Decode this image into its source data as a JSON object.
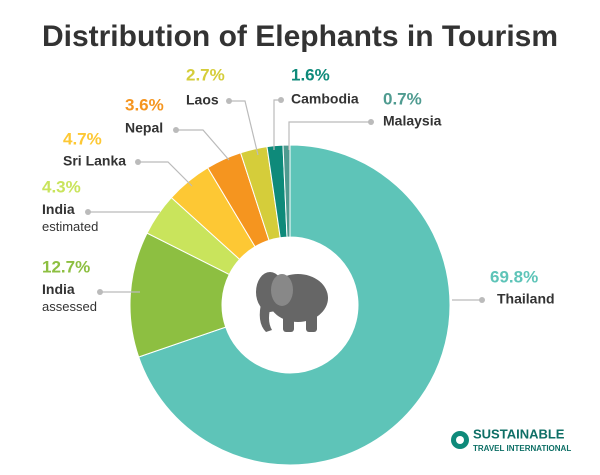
{
  "chart_data": {
    "type": "donut",
    "title": "Distribution of Elephants in Tourism",
    "categories": [
      "Thailand",
      "India\nassessed",
      "India\nestimated",
      "Sri Lanka",
      "Nepal",
      "Laos",
      "Cambodia",
      "Malaysia"
    ],
    "values": [
      69.8,
      12.7,
      4.3,
      4.7,
      3.6,
      2.7,
      1.6,
      0.7
    ],
    "value_labels": [
      "69.8%",
      "12.7%",
      "4.3%",
      "4.7%",
      "3.6%",
      "2.7%",
      "1.6%",
      "0.7%"
    ],
    "colors": [
      "#5ec4b8",
      "#8dbf41",
      "#c9e45c",
      "#fdc834",
      "#f5951f",
      "#d5cd3a",
      "#0e8a7a",
      "#4f9b90"
    ]
  },
  "logo": {
    "line1": "SUSTAINABLE",
    "line2": "TRAVEL INTERNATIONAL"
  }
}
